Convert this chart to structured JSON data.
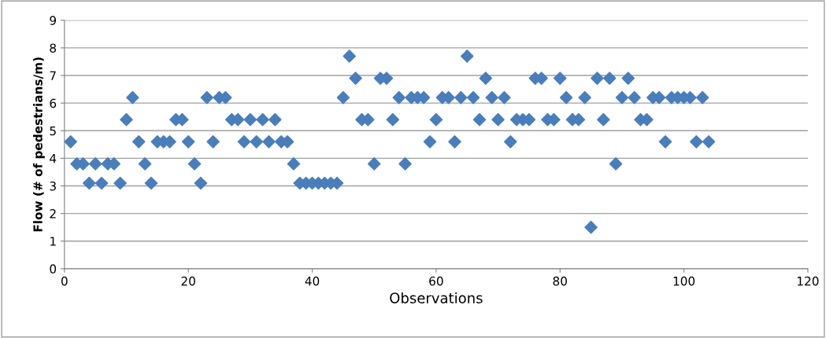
{
  "chart_data": {
    "type": "scatter",
    "xlabel": "Observations",
    "ylabel": "Flow (# of pedestrians/m)",
    "x": [
      1,
      2,
      3,
      4,
      5,
      6,
      7,
      8,
      9,
      10,
      11,
      12,
      13,
      14,
      15,
      16,
      17,
      18,
      19,
      20,
      21,
      22,
      23,
      24,
      25,
      26,
      27,
      28,
      29,
      30,
      31,
      32,
      33,
      34,
      35,
      36,
      37,
      38,
      39,
      40,
      41,
      42,
      43,
      44,
      45,
      46,
      47,
      48,
      49,
      50,
      51,
      52,
      53,
      54,
      55,
      56,
      57,
      58,
      59,
      60,
      61,
      62,
      63,
      64,
      65,
      66,
      67,
      68,
      69,
      70,
      71,
      72,
      73,
      74,
      75,
      76,
      77,
      78,
      79,
      80,
      81,
      82,
      83,
      84,
      85,
      86,
      87,
      88,
      89,
      90,
      91,
      92,
      93,
      94,
      95,
      96,
      97,
      98,
      99,
      100,
      101,
      102,
      103,
      104
    ],
    "series": [
      {
        "color": "#4a7ebb",
        "values": [
          4.6,
          3.8,
          3.8,
          3.1,
          3.8,
          3.1,
          3.8,
          3.8,
          3.1,
          5.4,
          6.2,
          4.6,
          3.8,
          3.1,
          4.6,
          4.6,
          4.6,
          5.4,
          5.4,
          4.6,
          3.8,
          3.1,
          6.2,
          4.6,
          6.2,
          6.2,
          5.4,
          5.4,
          4.6,
          5.4,
          4.6,
          5.4,
          4.6,
          5.4,
          4.6,
          4.6,
          3.8,
          3.1,
          3.1,
          3.1,
          3.1,
          3.1,
          3.1,
          3.1,
          6.2,
          7.7,
          6.9,
          5.4,
          5.4,
          3.8,
          6.9,
          6.9,
          5.4,
          6.2,
          3.8,
          6.2,
          6.2,
          6.2,
          4.6,
          5.4,
          6.2,
          6.2,
          4.6,
          6.2,
          7.7,
          6.2,
          5.4,
          6.9,
          6.2,
          5.4,
          6.2,
          4.6,
          5.4,
          5.4,
          5.4,
          6.9,
          6.9,
          5.4,
          5.4,
          6.9,
          6.2,
          5.4,
          5.4,
          6.2,
          1.5,
          6.9,
          5.4,
          6.9,
          3.8,
          6.2,
          6.9,
          6.2,
          5.4,
          5.4,
          6.2,
          6.2,
          4.6,
          6.2,
          6.2,
          6.2,
          6.2,
          4.6,
          6.2,
          4.6
        ]
      }
    ],
    "xlim": [
      0,
      120
    ],
    "xticks": [
      0,
      20,
      40,
      60,
      80,
      100,
      120
    ],
    "ylim": [
      0,
      9
    ],
    "yticks": [
      0,
      1,
      2,
      3,
      4,
      5,
      6,
      7,
      8,
      9
    ],
    "grid": "y",
    "marker": "diamond"
  }
}
